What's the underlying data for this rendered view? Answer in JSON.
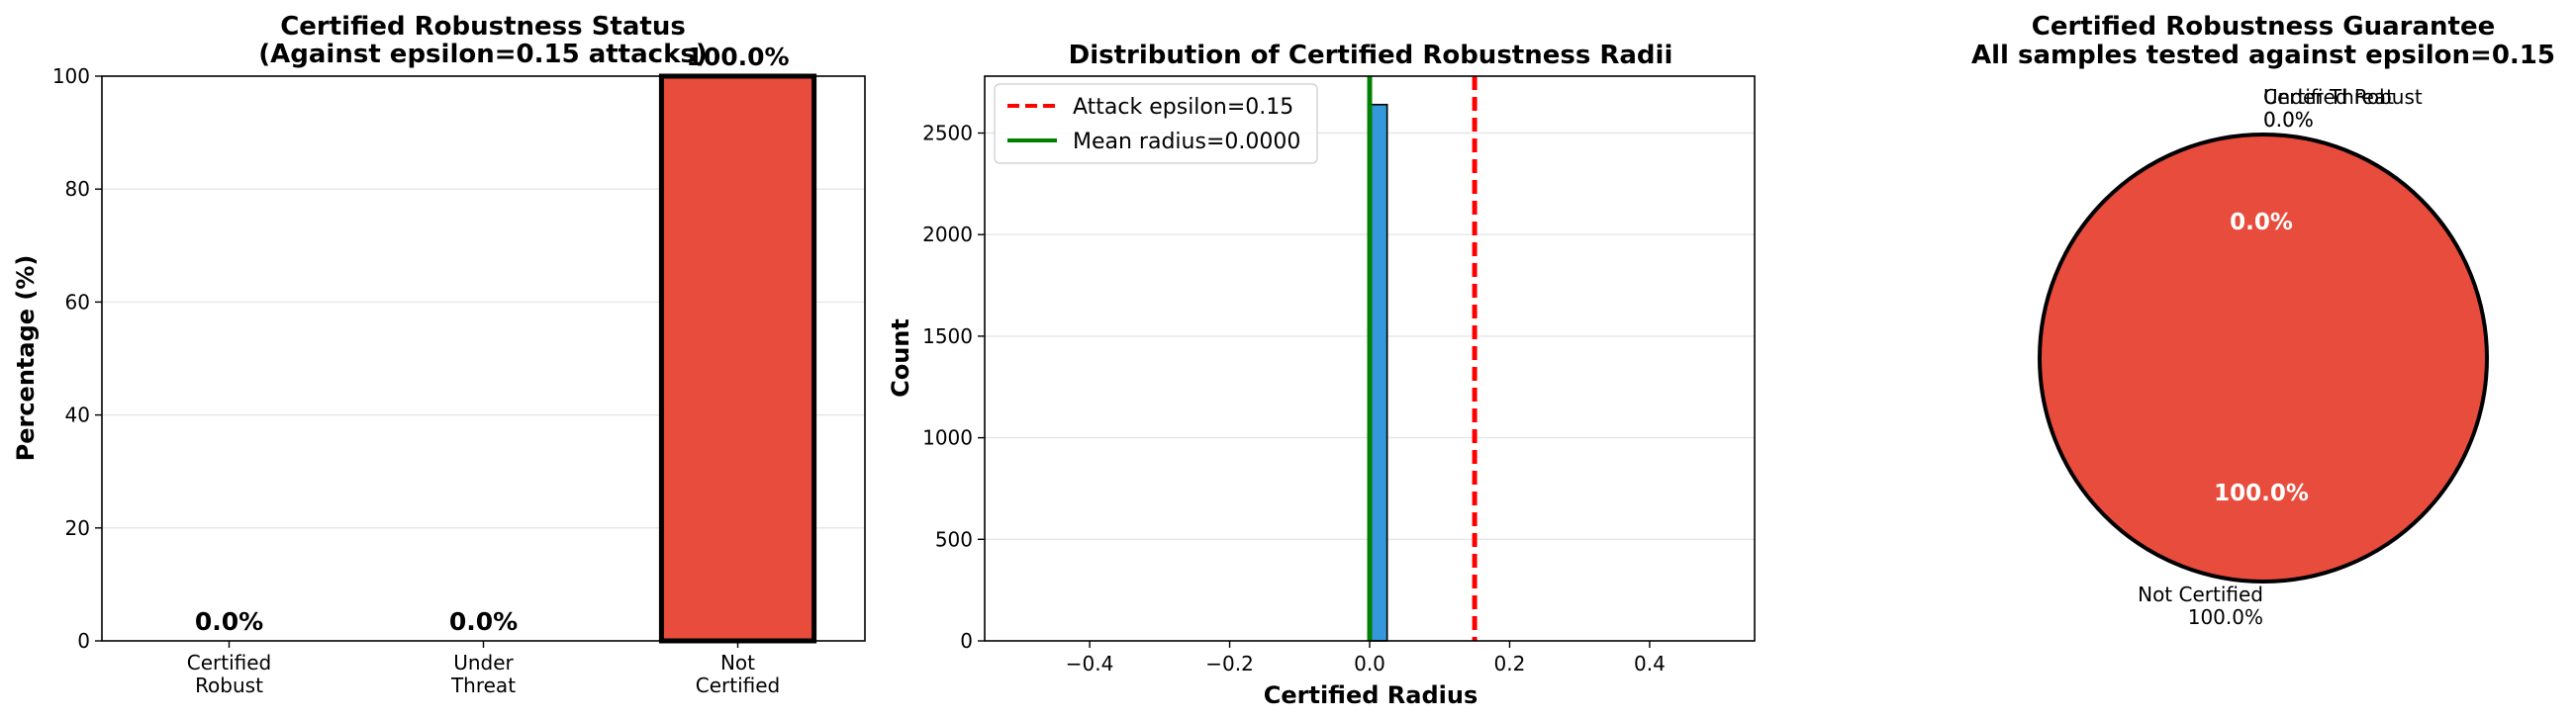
{
  "chart_data": [
    {
      "type": "bar",
      "title": [
        "Certified Robustness Status",
        "(Against epsilon=0.15 attacks)"
      ],
      "xlabel": "",
      "ylabel": "Percentage (%)",
      "ylim": [
        0,
        100
      ],
      "yticks": [
        0,
        20,
        40,
        60,
        80,
        100
      ],
      "categories": [
        [
          "Certified",
          "Robust"
        ],
        [
          "Under",
          "Threat"
        ],
        [
          "Not",
          "Certified"
        ]
      ],
      "values": [
        0.0,
        0.0,
        100.0
      ],
      "data_labels": [
        "0.0%",
        "0.0%",
        "100.0%"
      ],
      "colors": [
        "#2ecc71",
        "#f39c12",
        "#e74c3c"
      ],
      "grid": "y"
    },
    {
      "type": "bar",
      "subtype": "histogram",
      "title": [
        "Distribution of Certified Robustness Radii"
      ],
      "xlabel": "Certified Radius",
      "ylabel": "Count",
      "xlim": [
        -0.55,
        0.55
      ],
      "ylim": [
        0,
        2780
      ],
      "xticks": [
        -0.4,
        -0.2,
        0.0,
        0.2,
        0.4
      ],
      "xtick_labels": [
        "−0.4",
        "−0.2",
        "0.0",
        "0.2",
        "0.4"
      ],
      "yticks": [
        0,
        500,
        1000,
        1500,
        2000,
        2500
      ],
      "bins": [
        {
          "x0": 0.0,
          "x1": 0.025,
          "count": 2640
        }
      ],
      "bar_color": "#3498db",
      "vlines": [
        {
          "name": "Attack epsilon=0.15",
          "x": 0.15,
          "color": "#ff0000",
          "style": "dashed"
        },
        {
          "name": "Mean radius=0.0000",
          "x": 0.0,
          "color": "#008000",
          "style": "solid"
        }
      ],
      "legend": "top-left",
      "grid": "y"
    },
    {
      "type": "pie",
      "title": [
        "Certified Robustness Guarantee",
        "All samples tested against epsilon=0.15"
      ],
      "slices": [
        {
          "label": "Certified Robust",
          "value": 0.0,
          "pct": "0.0%",
          "color": "#2ecc71"
        },
        {
          "label": "Under Threat",
          "value": 0.0,
          "pct": "0.0%",
          "color": "#f39c12"
        },
        {
          "label": "Not Certified",
          "value": 100.0,
          "pct": "100.0%",
          "color": "#e74c3c"
        }
      ],
      "outer_labels": [
        {
          "label": "Certified Robust",
          "pct": "0.0%"
        },
        {
          "label": "Under Threat",
          "pct": "0.0%"
        },
        {
          "label": "Not Certified",
          "pct": "100.0%"
        }
      ],
      "inner_labels": [
        "0.0%",
        "100.0%"
      ]
    }
  ]
}
